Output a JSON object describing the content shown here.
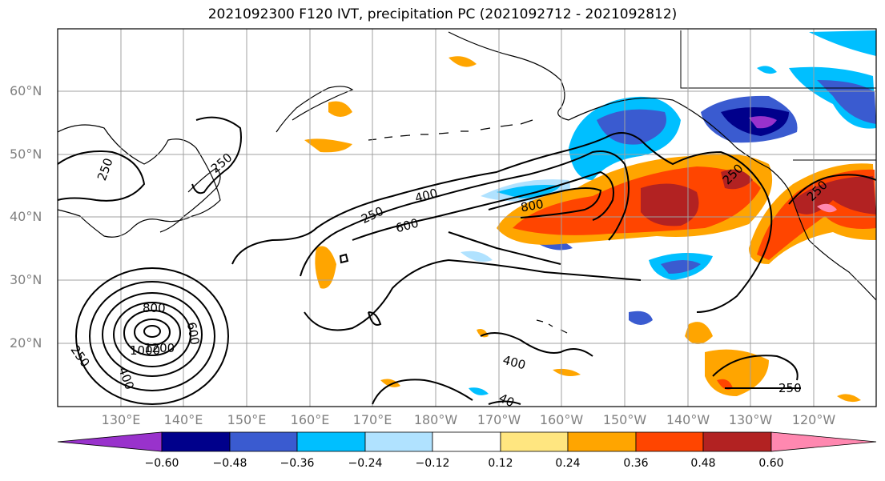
{
  "map": {
    "title": "2021092300 F120 IVT, precipitation PC (2021092712 - 2021092812)",
    "lat_labels": [
      "60°N",
      "50°N",
      "40°N",
      "30°N",
      "20°N"
    ],
    "lon_labels": [
      "130°E",
      "140°E",
      "150°E",
      "160°E",
      "170°E",
      "180°W",
      "170°W",
      "160°W",
      "150°W",
      "140°W",
      "130°W",
      "120°W"
    ],
    "contour_labels": [
      "250",
      "250",
      "250",
      "400",
      "600",
      "800",
      "250",
      "250",
      "800",
      "600",
      "1000",
      "1200",
      "250",
      "400",
      "400",
      "40",
      "250"
    ],
    "grid": true
  },
  "colorbar": {
    "ticks": [
      "−0.60",
      "−0.48",
      "−0.36",
      "−0.24",
      "−0.12",
      "0.12",
      "0.24",
      "0.36",
      "0.48",
      "0.60"
    ],
    "colors": [
      "#9932cc",
      "#00008b",
      "#3a5bd0",
      "#00bfff",
      "#b0e2ff",
      "#ffffff",
      "#ffe680",
      "#ffa500",
      "#ff4500",
      "#b22222",
      "#ff88b0"
    ],
    "extend": "both"
  },
  "colors": {
    "contour": "#000000",
    "grid": "#a0a0a0",
    "tick_label": "#808080"
  }
}
